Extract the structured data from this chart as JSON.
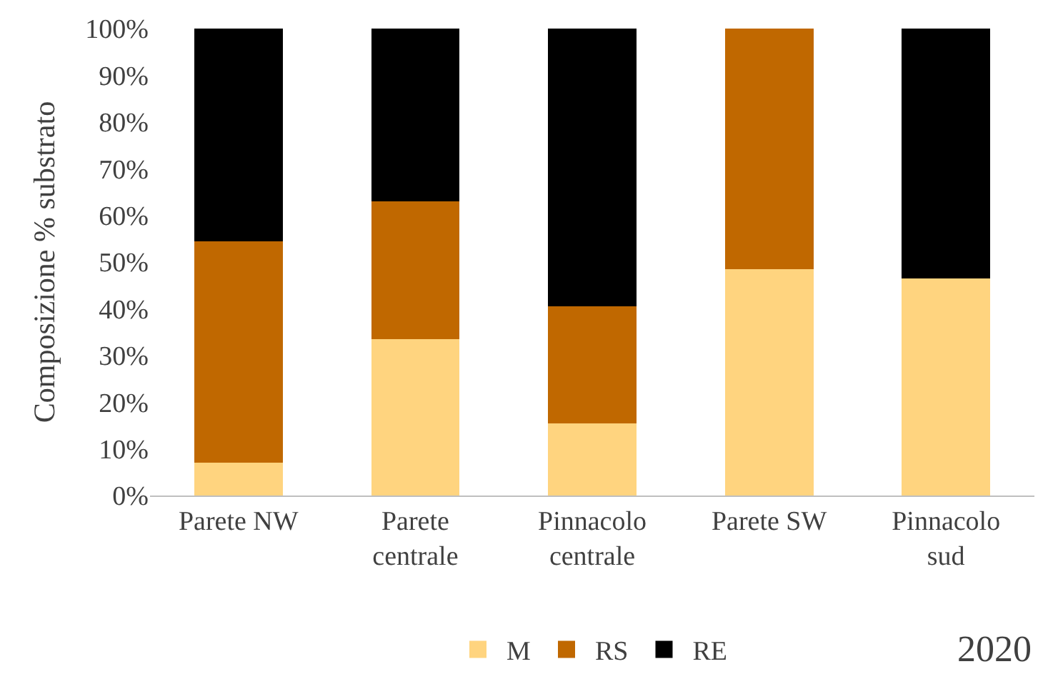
{
  "chart_data": {
    "type": "bar",
    "stacked": true,
    "ylabel": "Composizione % substrato",
    "categories": [
      "Parete NW",
      "Parete\ncentrale",
      "Pinnacolo\ncentrale",
      "Parete SW",
      "Pinnacolo\nsud"
    ],
    "series": [
      {
        "name": "M",
        "color": "#ffd47f",
        "values": [
          7,
          33.5,
          15.5,
          48.5,
          46.5
        ]
      },
      {
        "name": "RS",
        "color": "#c06800",
        "values": [
          47.5,
          29.5,
          25,
          51.5,
          0
        ]
      },
      {
        "name": "RE",
        "color": "#000000",
        "values": [
          45.5,
          37,
          59.5,
          0,
          53.5
        ]
      }
    ],
    "ylim": [
      0,
      100
    ],
    "yticks": [
      {
        "value": 0,
        "label": "0%"
      },
      {
        "value": 10,
        "label": "10%"
      },
      {
        "value": 20,
        "label": "20%"
      },
      {
        "value": 30,
        "label": "30%"
      },
      {
        "value": 40,
        "label": "40%"
      },
      {
        "value": 50,
        "label": "50%"
      },
      {
        "value": 60,
        "label": "60%"
      },
      {
        "value": 70,
        "label": "70%"
      },
      {
        "value": 80,
        "label": "80%"
      },
      {
        "value": 90,
        "label": "90%"
      },
      {
        "value": 100,
        "label": "100%"
      }
    ],
    "grid": false,
    "legend": "bottom",
    "annotations": [
      "2020"
    ]
  }
}
